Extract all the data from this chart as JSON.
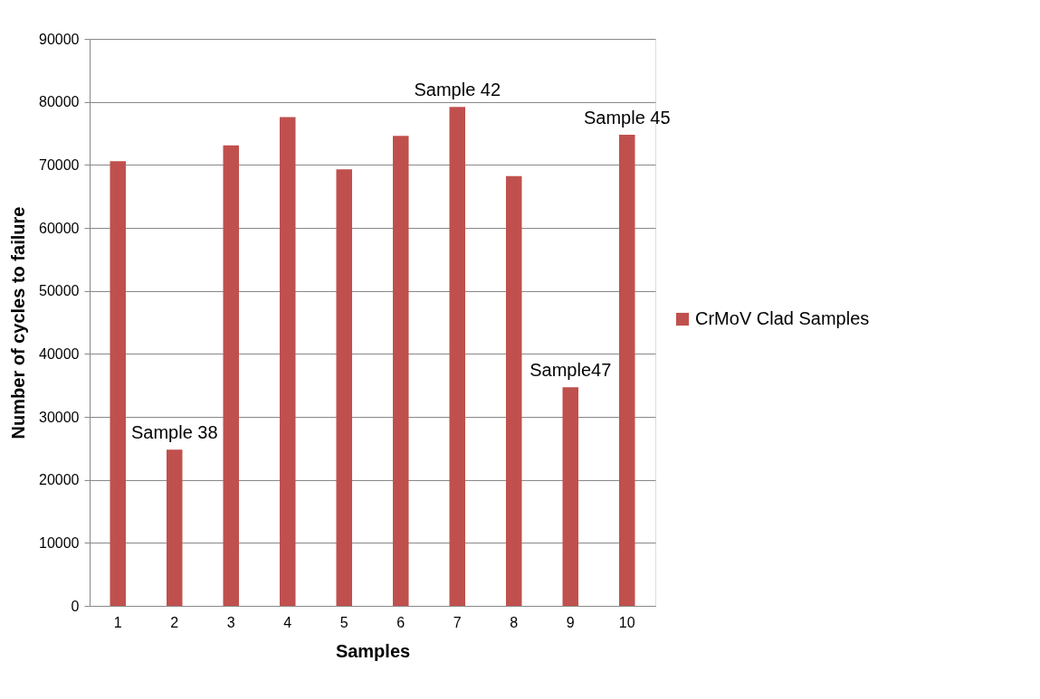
{
  "chart_data": {
    "type": "bar",
    "xlabel": "Samples",
    "ylabel": "Number of cycles to failure",
    "categories": [
      "1",
      "2",
      "3",
      "4",
      "5",
      "6",
      "7",
      "8",
      "9",
      "10"
    ],
    "series": [
      {
        "name": "CrMoV Clad Samples",
        "color": "#c0504d",
        "values": [
          70600,
          24800,
          73100,
          77600,
          69300,
          74600,
          79200,
          68200,
          34700,
          74800
        ]
      }
    ],
    "ylim": [
      0,
      90000
    ],
    "yticks": [
      0,
      10000,
      20000,
      30000,
      40000,
      50000,
      60000,
      70000,
      80000,
      90000
    ],
    "grid": "y",
    "legend": "right",
    "annotations": [
      {
        "text": "Sample 38",
        "x": "2",
        "y": 24800
      },
      {
        "text": "Sample 42",
        "x": "7",
        "y": 79200
      },
      {
        "text": "Sample47",
        "x": "9",
        "y": 34700
      },
      {
        "text": "Sample 45",
        "x": "10",
        "y": 74800
      }
    ]
  }
}
